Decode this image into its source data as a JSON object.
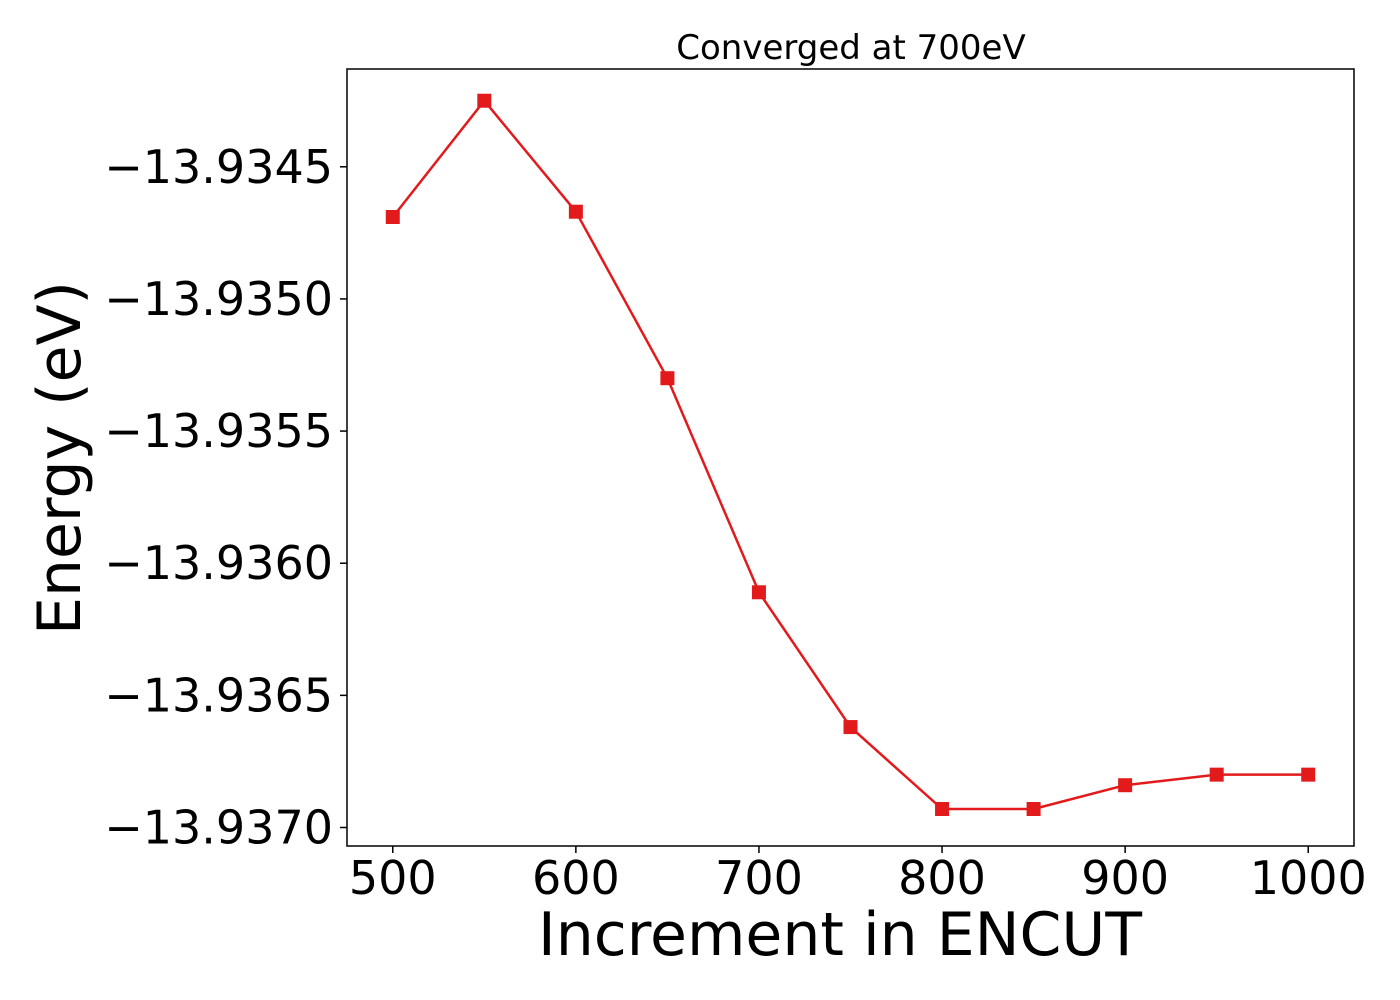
{
  "chart_data": {
    "type": "line",
    "title": "Converged at 700eV",
    "xlabel": "Increment in ENCUT",
    "ylabel": "Energy (eV)",
    "xlim": [
      475,
      1025
    ],
    "ylim": [
      -13.93707,
      -13.93413
    ],
    "xticks": [
      500,
      600,
      700,
      800,
      900,
      1000
    ],
    "xtick_labels": [
      "500",
      "600",
      "700",
      "800",
      "900",
      "1000"
    ],
    "yticks": [
      -13.9345,
      -13.935,
      -13.9355,
      -13.936,
      -13.9365,
      -13.937
    ],
    "ytick_labels": [
      "−13.9345",
      "−13.9350",
      "−13.9355",
      "−13.9360",
      "−13.9365",
      "−13.9370"
    ],
    "grid": false,
    "series": [
      {
        "color": "#e31a1c",
        "marker": "square",
        "x": [
          500,
          550,
          600,
          650,
          700,
          750,
          800,
          850,
          900,
          950,
          1000
        ],
        "y": [
          -13.93469,
          -13.93425,
          -13.93467,
          -13.9353,
          -13.93611,
          -13.93662,
          -13.93693,
          -13.93693,
          -13.93684,
          -13.9368,
          -13.9368
        ]
      }
    ]
  }
}
